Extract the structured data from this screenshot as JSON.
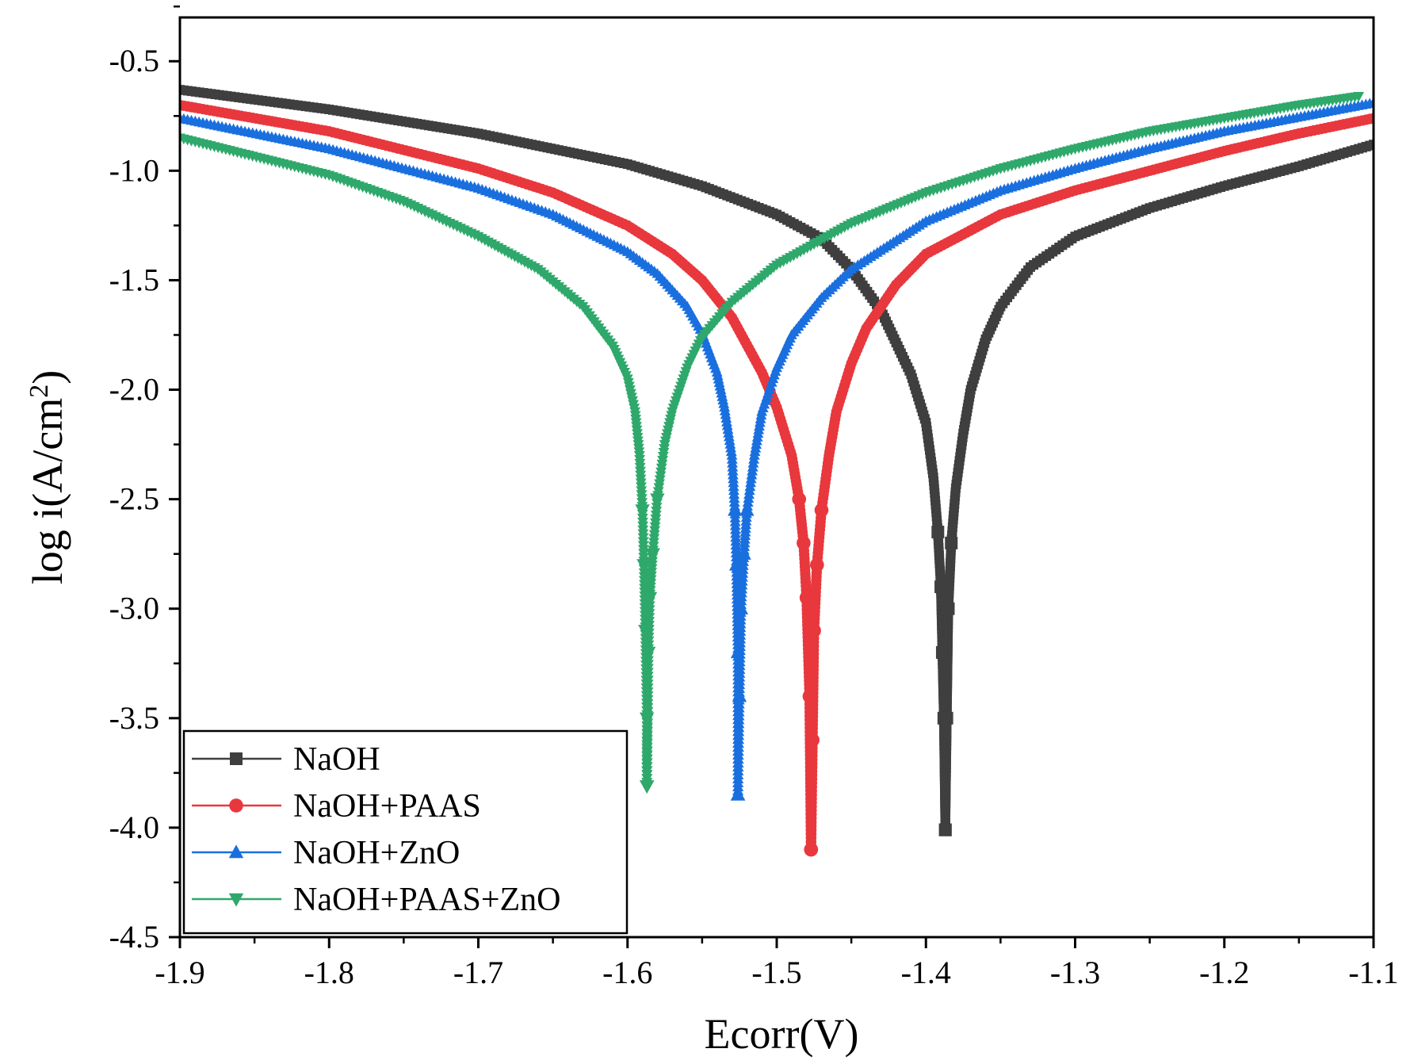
{
  "chart_data": {
    "type": "scatter",
    "title": "",
    "xlabel": "Ecorr(V)",
    "ylabel_main": "log i(A/cm",
    "ylabel_sup": "2",
    "ylabel_close": ")",
    "xlim": [
      -1.9,
      -1.1
    ],
    "ylim": [
      -4.5,
      -0.3
    ],
    "x_ticks": [
      "-1.9",
      "-1.8",
      "-1.7",
      "-1.6",
      "-1.5",
      "-1.4",
      "-1.3",
      "-1.2",
      "-1.1"
    ],
    "x_tick_values": [
      -1.9,
      -1.8,
      -1.7,
      -1.6,
      -1.5,
      -1.4,
      -1.3,
      -1.2,
      -1.1
    ],
    "y_ticks": [
      "-0.5",
      "-1.0",
      "-1.5",
      "-2.0",
      "-2.5",
      "-3.0",
      "-3.5",
      "-4.0",
      "-4.5"
    ],
    "y_tick_values": [
      -0.5,
      -1.0,
      -1.5,
      -2.0,
      -2.5,
      -3.0,
      -3.5,
      -4.0,
      -4.5
    ],
    "legend_position": "bottom-left",
    "series": [
      {
        "name": "NaOH",
        "color": "#3f3f3f",
        "marker": "square",
        "ecorr": -1.387,
        "min_log_i": -4.01,
        "points": [
          [
            -1.9,
            -0.63
          ],
          [
            -1.8,
            -0.72
          ],
          [
            -1.7,
            -0.83
          ],
          [
            -1.6,
            -0.97
          ],
          [
            -1.55,
            -1.07
          ],
          [
            -1.5,
            -1.2
          ],
          [
            -1.47,
            -1.31
          ],
          [
            -1.45,
            -1.45
          ],
          [
            -1.43,
            -1.64
          ],
          [
            -1.41,
            -1.93
          ],
          [
            -1.4,
            -2.15
          ],
          [
            -1.395,
            -2.4
          ],
          [
            -1.392,
            -2.65
          ],
          [
            -1.39,
            -2.9
          ],
          [
            -1.389,
            -3.2
          ],
          [
            -1.388,
            -3.5
          ],
          [
            -1.387,
            -4.01
          ],
          [
            -1.386,
            -3.5
          ],
          [
            -1.385,
            -3.0
          ],
          [
            -1.383,
            -2.7
          ],
          [
            -1.38,
            -2.45
          ],
          [
            -1.375,
            -2.2
          ],
          [
            -1.37,
            -2.0
          ],
          [
            -1.36,
            -1.77
          ],
          [
            -1.35,
            -1.62
          ],
          [
            -1.33,
            -1.44
          ],
          [
            -1.3,
            -1.3
          ],
          [
            -1.25,
            -1.17
          ],
          [
            -1.2,
            -1.07
          ],
          [
            -1.15,
            -0.98
          ],
          [
            -1.1,
            -0.88
          ]
        ]
      },
      {
        "name": "NaOH+PAAS",
        "color": "#e8383d",
        "marker": "circle",
        "ecorr": -1.477,
        "min_log_i": -4.1,
        "points": [
          [
            -1.9,
            -0.7
          ],
          [
            -1.8,
            -0.82
          ],
          [
            -1.7,
            -0.99
          ],
          [
            -1.65,
            -1.1
          ],
          [
            -1.6,
            -1.25
          ],
          [
            -1.57,
            -1.38
          ],
          [
            -1.55,
            -1.5
          ],
          [
            -1.53,
            -1.67
          ],
          [
            -1.51,
            -1.92
          ],
          [
            -1.5,
            -2.08
          ],
          [
            -1.49,
            -2.3
          ],
          [
            -1.485,
            -2.5
          ],
          [
            -1.482,
            -2.7
          ],
          [
            -1.48,
            -2.95
          ],
          [
            -1.478,
            -3.4
          ],
          [
            -1.477,
            -4.1
          ],
          [
            -1.476,
            -3.6
          ],
          [
            -1.475,
            -3.1
          ],
          [
            -1.473,
            -2.8
          ],
          [
            -1.47,
            -2.55
          ],
          [
            -1.465,
            -2.3
          ],
          [
            -1.46,
            -2.1
          ],
          [
            -1.45,
            -1.88
          ],
          [
            -1.44,
            -1.72
          ],
          [
            -1.42,
            -1.52
          ],
          [
            -1.4,
            -1.38
          ],
          [
            -1.35,
            -1.2
          ],
          [
            -1.3,
            -1.09
          ],
          [
            -1.25,
            -1.0
          ],
          [
            -1.2,
            -0.91
          ],
          [
            -1.15,
            -0.83
          ],
          [
            -1.1,
            -0.76
          ]
        ]
      },
      {
        "name": "NaOH+ZnO",
        "color": "#1a6fdf",
        "marker": "triangle-up",
        "ecorr": -1.526,
        "min_log_i": -3.85,
        "points": [
          [
            -1.9,
            -0.76
          ],
          [
            -1.8,
            -0.9
          ],
          [
            -1.7,
            -1.08
          ],
          [
            -1.65,
            -1.2
          ],
          [
            -1.6,
            -1.37
          ],
          [
            -1.58,
            -1.47
          ],
          [
            -1.56,
            -1.62
          ],
          [
            -1.55,
            -1.74
          ],
          [
            -1.54,
            -1.92
          ],
          [
            -1.535,
            -2.08
          ],
          [
            -1.53,
            -2.3
          ],
          [
            -1.528,
            -2.55
          ],
          [
            -1.527,
            -2.8
          ],
          [
            -1.526,
            -3.2
          ],
          [
            -1.526,
            -3.85
          ],
          [
            -1.525,
            -3.4
          ],
          [
            -1.524,
            -3.0
          ],
          [
            -1.522,
            -2.75
          ],
          [
            -1.52,
            -2.55
          ],
          [
            -1.515,
            -2.3
          ],
          [
            -1.51,
            -2.1
          ],
          [
            -1.5,
            -1.9
          ],
          [
            -1.49,
            -1.75
          ],
          [
            -1.47,
            -1.58
          ],
          [
            -1.45,
            -1.45
          ],
          [
            -1.4,
            -1.23
          ],
          [
            -1.35,
            -1.09
          ],
          [
            -1.3,
            -0.99
          ],
          [
            -1.25,
            -0.9
          ],
          [
            -1.2,
            -0.82
          ],
          [
            -1.1,
            -0.69
          ]
        ]
      },
      {
        "name": "NaOH+PAAS+ZnO",
        "color": "#2fa86b",
        "marker": "triangle-down",
        "ecorr": -1.587,
        "min_log_i": -3.81,
        "points": [
          [
            -1.9,
            -0.85
          ],
          [
            -1.8,
            -1.02
          ],
          [
            -1.75,
            -1.14
          ],
          [
            -1.7,
            -1.3
          ],
          [
            -1.66,
            -1.45
          ],
          [
            -1.63,
            -1.62
          ],
          [
            -1.61,
            -1.8
          ],
          [
            -1.6,
            -1.95
          ],
          [
            -1.595,
            -2.1
          ],
          [
            -1.592,
            -2.3
          ],
          [
            -1.59,
            -2.55
          ],
          [
            -1.589,
            -2.8
          ],
          [
            -1.588,
            -3.1
          ],
          [
            -1.587,
            -3.5
          ],
          [
            -1.587,
            -3.81
          ],
          [
            -1.586,
            -3.2
          ],
          [
            -1.585,
            -2.95
          ],
          [
            -1.583,
            -2.75
          ],
          [
            -1.58,
            -2.5
          ],
          [
            -1.575,
            -2.25
          ],
          [
            -1.57,
            -2.1
          ],
          [
            -1.56,
            -1.9
          ],
          [
            -1.55,
            -1.76
          ],
          [
            -1.53,
            -1.6
          ],
          [
            -1.5,
            -1.43
          ],
          [
            -1.45,
            -1.24
          ],
          [
            -1.4,
            -1.1
          ],
          [
            -1.35,
            -0.99
          ],
          [
            -1.3,
            -0.9
          ],
          [
            -1.25,
            -0.82
          ],
          [
            -1.2,
            -0.76
          ],
          [
            -1.15,
            -0.7
          ],
          [
            -1.11,
            -0.66
          ]
        ]
      }
    ]
  }
}
